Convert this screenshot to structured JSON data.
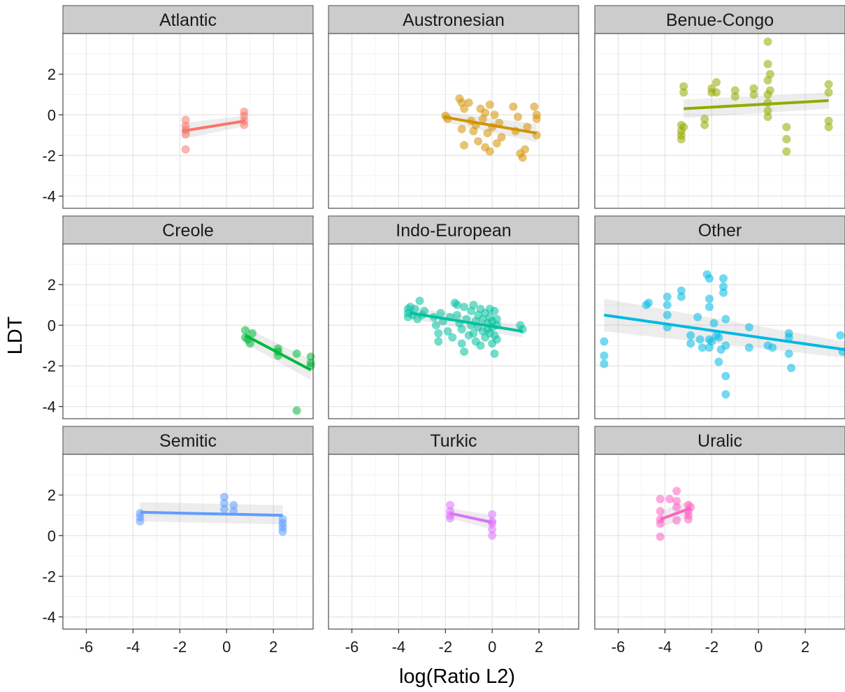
{
  "chart_data": {
    "type": "scatter",
    "xlabel": "log(Ratio L2)",
    "ylabel": "LDT",
    "xlim": [
      -7,
      3.7
    ],
    "ylim": [
      -4.6,
      4.0
    ],
    "x_ticks": [
      -6,
      -4,
      -2,
      0,
      2
    ],
    "y_ticks": [
      -4,
      -2,
      0,
      2
    ],
    "grid": true,
    "panel_background": "#ffffff",
    "strip_background": "#cccccc",
    "panels": [
      {
        "name": "Atlantic",
        "color": "#f8766d",
        "fit": {
          "x": [
            -1.9,
            0.8
          ],
          "y": [
            -0.8,
            -0.3
          ]
        },
        "band": {
          "lower": [
            -1.2,
            -0.55
          ],
          "upper": [
            -0.4,
            -0.05
          ]
        },
        "points": [
          [
            -1.75,
            -0.25
          ],
          [
            -1.75,
            -0.55
          ],
          [
            -1.75,
            -0.75
          ],
          [
            -1.75,
            -0.95
          ],
          [
            -1.75,
            -1.7
          ],
          [
            0.75,
            0.15
          ],
          [
            0.75,
            -0.05
          ],
          [
            0.75,
            -0.3
          ],
          [
            0.75,
            -0.5
          ]
        ]
      },
      {
        "name": "Austronesian",
        "color": "#d39200",
        "fit": {
          "x": [
            -2.1,
            1.9
          ],
          "y": [
            -0.1,
            -0.9
          ]
        },
        "band": {
          "lower": [
            -0.35,
            -1.35
          ],
          "upper": [
            0.15,
            -0.45
          ]
        },
        "points": [
          [
            -2.0,
            -0.05
          ],
          [
            -1.9,
            -0.2
          ],
          [
            -1.4,
            0.8
          ],
          [
            -1.3,
            0.6
          ],
          [
            -1.2,
            0.3
          ],
          [
            -1.3,
            -0.7
          ],
          [
            -1.2,
            -1.5
          ],
          [
            -1.0,
            0.6
          ],
          [
            -0.9,
            -0.3
          ],
          [
            -0.8,
            -0.8
          ],
          [
            -0.7,
            -0.5
          ],
          [
            -0.6,
            -1.3
          ],
          [
            -0.5,
            0.3
          ],
          [
            -0.4,
            -0.2
          ],
          [
            -0.3,
            0.1
          ],
          [
            -0.3,
            -1.6
          ],
          [
            -0.2,
            -0.9
          ],
          [
            -0.1,
            0.5
          ],
          [
            -0.1,
            -1.8
          ],
          [
            0.0,
            -0.6
          ],
          [
            0.1,
            0.0
          ],
          [
            0.2,
            -1.4
          ],
          [
            0.3,
            -0.4
          ],
          [
            0.4,
            -1.1
          ],
          [
            0.9,
            0.4
          ],
          [
            1.0,
            -0.8
          ],
          [
            1.1,
            -0.1
          ],
          [
            1.2,
            -1.9
          ],
          [
            1.3,
            -2.1
          ],
          [
            1.4,
            -1.7
          ],
          [
            1.5,
            -0.6
          ],
          [
            1.8,
            0.4
          ],
          [
            1.9,
            0.0
          ],
          [
            1.9,
            -0.2
          ],
          [
            1.9,
            -1.0
          ]
        ]
      },
      {
        "name": "Benue-Congo",
        "color": "#93aa00",
        "fit": {
          "x": [
            -3.2,
            3.0
          ],
          "y": [
            0.3,
            0.7
          ]
        },
        "band": {
          "lower": [
            -0.15,
            0.3
          ],
          "upper": [
            0.75,
            1.1
          ]
        },
        "points": [
          [
            -3.3,
            -0.5
          ],
          [
            -3.3,
            -0.8
          ],
          [
            -3.3,
            -1.0
          ],
          [
            -3.3,
            -1.2
          ],
          [
            -3.2,
            1.4
          ],
          [
            -3.2,
            1.1
          ],
          [
            -3.2,
            -0.6
          ],
          [
            -2.3,
            -0.2
          ],
          [
            -2.3,
            -0.5
          ],
          [
            -2.0,
            1.3
          ],
          [
            -2.0,
            1.1
          ],
          [
            -1.8,
            1.6
          ],
          [
            -1.8,
            1.1
          ],
          [
            -1.0,
            1.2
          ],
          [
            -1.0,
            0.9
          ],
          [
            -0.2,
            1.3
          ],
          [
            -0.2,
            1.0
          ],
          [
            0.4,
            3.6
          ],
          [
            0.4,
            2.5
          ],
          [
            0.4,
            1.7
          ],
          [
            0.4,
            1.0
          ],
          [
            0.4,
            0.6
          ],
          [
            0.4,
            0.2
          ],
          [
            0.4,
            -0.1
          ],
          [
            0.5,
            2.0
          ],
          [
            0.5,
            1.2
          ],
          [
            1.2,
            -0.6
          ],
          [
            1.2,
            -1.2
          ],
          [
            1.2,
            -1.8
          ],
          [
            3.0,
            1.5
          ],
          [
            3.0,
            1.1
          ],
          [
            3.0,
            -0.3
          ],
          [
            3.0,
            -0.6
          ]
        ]
      },
      {
        "name": "Creole",
        "color": "#00ba38",
        "fit": {
          "x": [
            0.8,
            3.6
          ],
          "y": [
            -0.5,
            -2.2
          ]
        },
        "band": {
          "lower": [
            -0.9,
            -2.7
          ],
          "upper": [
            -0.1,
            -1.7
          ]
        },
        "points": [
          [
            0.8,
            -0.25
          ],
          [
            0.8,
            -0.6
          ],
          [
            0.9,
            -0.7
          ],
          [
            1.0,
            -0.9
          ],
          [
            1.1,
            -0.4
          ],
          [
            2.2,
            -1.15
          ],
          [
            2.2,
            -1.3
          ],
          [
            2.2,
            -1.5
          ],
          [
            3.0,
            -1.4
          ],
          [
            3.0,
            -4.2
          ],
          [
            3.6,
            -1.55
          ],
          [
            3.6,
            -1.85
          ],
          [
            3.6,
            -2.0
          ]
        ]
      },
      {
        "name": "Indo-European",
        "color": "#00c19f",
        "fit": {
          "x": [
            -3.5,
            1.3
          ],
          "y": [
            0.6,
            -0.3
          ]
        },
        "band": {
          "lower": [
            0.3,
            -0.6
          ],
          "upper": [
            0.9,
            0.0
          ]
        },
        "points": [
          [
            -3.6,
            0.8
          ],
          [
            -3.6,
            0.6
          ],
          [
            -3.6,
            0.4
          ],
          [
            -3.5,
            0.9
          ],
          [
            -3.4,
            0.5
          ],
          [
            -3.3,
            0.8
          ],
          [
            -3.2,
            0.3
          ],
          [
            -3.1,
            1.2
          ],
          [
            -3.0,
            0.5
          ],
          [
            -2.9,
            0.7
          ],
          [
            -2.5,
            0.4
          ],
          [
            -2.4,
            0.0
          ],
          [
            -2.3,
            -0.4
          ],
          [
            -2.3,
            -0.8
          ],
          [
            -2.2,
            0.6
          ],
          [
            -2.1,
            0.2
          ],
          [
            -1.9,
            -0.3
          ],
          [
            -1.8,
            0.4
          ],
          [
            -1.7,
            -0.6
          ],
          [
            -1.6,
            1.1
          ],
          [
            -1.5,
            1.0
          ],
          [
            -1.5,
            0.5
          ],
          [
            -1.4,
            0.1
          ],
          [
            -1.3,
            -0.2
          ],
          [
            -1.3,
            -0.9
          ],
          [
            -1.2,
            -1.3
          ],
          [
            -1.2,
            0.9
          ],
          [
            -1.1,
            0.3
          ],
          [
            -1.0,
            -0.5
          ],
          [
            -0.9,
            0.7
          ],
          [
            -0.9,
            0.0
          ],
          [
            -0.8,
            -0.4
          ],
          [
            -0.8,
            1.0
          ],
          [
            -0.7,
            0.2
          ],
          [
            -0.7,
            -0.8
          ],
          [
            -0.6,
            0.5
          ],
          [
            -0.6,
            -0.1
          ],
          [
            -0.5,
            -1.0
          ],
          [
            -0.5,
            0.8
          ],
          [
            -0.4,
            0.3
          ],
          [
            -0.4,
            -0.3
          ],
          [
            -0.3,
            0.6
          ],
          [
            -0.3,
            -0.6
          ],
          [
            -0.2,
            0.1
          ],
          [
            -0.2,
            -0.2
          ],
          [
            -0.1,
            0.8
          ],
          [
            -0.1,
            -0.4
          ],
          [
            -0.1,
            0.4
          ],
          [
            0.0,
            -0.9
          ],
          [
            0.0,
            0.2
          ],
          [
            0.0,
            -0.1
          ],
          [
            0.1,
            0.7
          ],
          [
            0.1,
            -0.5
          ],
          [
            0.1,
            -1.4
          ],
          [
            0.2,
            0.3
          ],
          [
            0.2,
            0.0
          ],
          [
            0.2,
            -0.7
          ],
          [
            1.2,
            0.0
          ],
          [
            1.3,
            -0.2
          ]
        ]
      },
      {
        "name": "Other",
        "color": "#00b9e3",
        "fit": {
          "x": [
            -6.6,
            3.7
          ],
          "y": [
            0.5,
            -1.2
          ]
        },
        "band": {
          "lower": [
            -0.3,
            -1.6
          ],
          "upper": [
            1.3,
            -0.8
          ]
        },
        "points": [
          [
            -6.6,
            -0.8
          ],
          [
            -6.6,
            -1.5
          ],
          [
            -6.6,
            -1.9
          ],
          [
            -4.8,
            1.0
          ],
          [
            -4.7,
            1.1
          ],
          [
            -3.9,
            1.4
          ],
          [
            -3.9,
            1.0
          ],
          [
            -3.9,
            0.5
          ],
          [
            -3.9,
            -0.1
          ],
          [
            -3.3,
            1.7
          ],
          [
            -3.3,
            1.4
          ],
          [
            -2.9,
            -0.5
          ],
          [
            -2.9,
            -0.9
          ],
          [
            -2.6,
            0.4
          ],
          [
            -2.5,
            -0.7
          ],
          [
            -2.4,
            -1.1
          ],
          [
            -2.2,
            2.5
          ],
          [
            -2.1,
            2.3
          ],
          [
            -2.1,
            1.3
          ],
          [
            -2.1,
            0.9
          ],
          [
            -2.1,
            -0.7
          ],
          [
            -2.1,
            -1.1
          ],
          [
            -2.0,
            -0.8
          ],
          [
            -1.9,
            0.1
          ],
          [
            -1.8,
            -0.5
          ],
          [
            -1.7,
            -1.8
          ],
          [
            -1.7,
            -0.6
          ],
          [
            -1.6,
            -1.2
          ],
          [
            -1.5,
            2.3
          ],
          [
            -1.5,
            1.9
          ],
          [
            -1.5,
            1.6
          ],
          [
            -1.4,
            0.3
          ],
          [
            -1.4,
            -1.0
          ],
          [
            -1.4,
            -2.5
          ],
          [
            -1.4,
            -3.4
          ],
          [
            -0.4,
            -0.1
          ],
          [
            -0.4,
            -1.1
          ],
          [
            0.4,
            -1.0
          ],
          [
            0.6,
            -1.1
          ],
          [
            1.3,
            -0.4
          ],
          [
            1.3,
            -0.6
          ],
          [
            1.3,
            -1.4
          ],
          [
            1.4,
            -2.1
          ],
          [
            3.5,
            -0.5
          ],
          [
            3.6,
            -1.3
          ]
        ]
      },
      {
        "name": "Semitic",
        "color": "#619cff",
        "fit": {
          "x": [
            -3.7,
            2.4
          ],
          "y": [
            1.15,
            1.0
          ]
        },
        "band": {
          "lower": [
            0.7,
            0.55
          ],
          "upper": [
            1.65,
            1.5
          ]
        },
        "points": [
          [
            -3.7,
            1.1
          ],
          [
            -3.7,
            0.9
          ],
          [
            -3.7,
            0.7
          ],
          [
            -0.1,
            1.9
          ],
          [
            -0.1,
            1.6
          ],
          [
            -0.1,
            1.3
          ],
          [
            0.3,
            1.5
          ],
          [
            0.3,
            1.2
          ],
          [
            2.4,
            0.8
          ],
          [
            2.4,
            0.6
          ],
          [
            2.4,
            0.4
          ],
          [
            2.4,
            0.2
          ]
        ]
      },
      {
        "name": "Turkic",
        "color": "#db72fb",
        "fit": {
          "x": [
            -1.8,
            0.0
          ],
          "y": [
            1.1,
            0.65
          ]
        },
        "band": {
          "lower": [
            0.85,
            0.3
          ],
          "upper": [
            1.35,
            1.0
          ]
        },
        "points": [
          [
            -1.8,
            1.5
          ],
          [
            -1.8,
            1.2
          ],
          [
            -1.8,
            1.0
          ],
          [
            -1.8,
            0.85
          ],
          [
            0.0,
            1.05
          ],
          [
            0.0,
            0.7
          ],
          [
            0.0,
            0.6
          ],
          [
            0.0,
            0.3
          ],
          [
            0.0,
            0.0
          ]
        ]
      },
      {
        "name": "Uralic",
        "color": "#ff61c3",
        "fit": {
          "x": [
            -4.2,
            -2.9
          ],
          "y": [
            0.8,
            1.35
          ]
        },
        "band": {
          "lower": [
            0.4,
            0.95
          ],
          "upper": [
            1.2,
            1.75
          ]
        },
        "points": [
          [
            -4.2,
            1.8
          ],
          [
            -4.2,
            1.2
          ],
          [
            -4.2,
            0.8
          ],
          [
            -4.2,
            0.6
          ],
          [
            -4.2,
            -0.05
          ],
          [
            -3.8,
            1.8
          ],
          [
            -3.5,
            2.2
          ],
          [
            -3.5,
            1.7
          ],
          [
            -3.5,
            1.4
          ],
          [
            -3.5,
            0.75
          ],
          [
            -3.0,
            1.5
          ],
          [
            -3.0,
            1.2
          ],
          [
            -3.0,
            1.0
          ],
          [
            -3.0,
            0.8
          ],
          [
            -2.9,
            1.4
          ]
        ]
      }
    ]
  }
}
